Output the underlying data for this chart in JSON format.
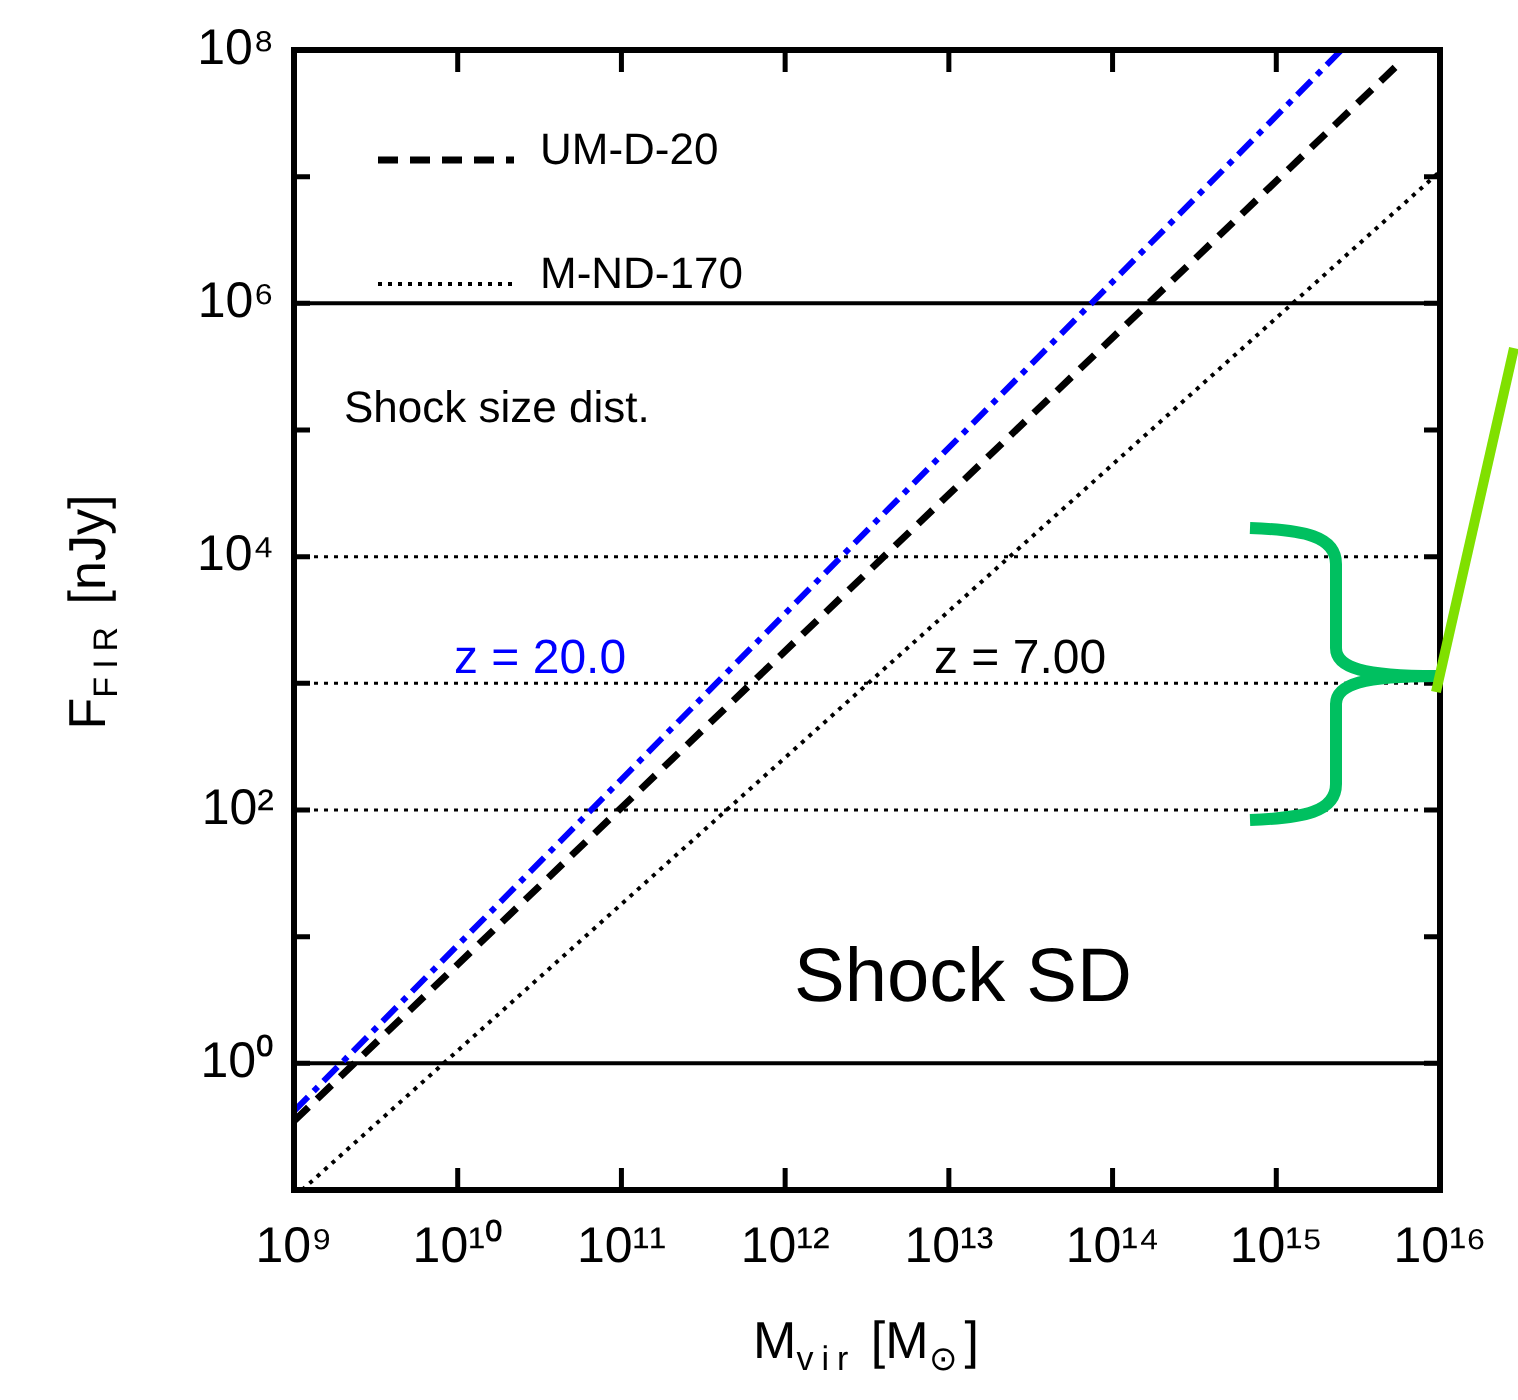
{
  "chart_data": {
    "type": "line",
    "xlabel": "M$_{vir}$ [M$_{⊙}$]",
    "ylabel": "F$_{FIR}$ [nJy]",
    "log": "xy",
    "xlim": [
      1000000000,
      10000000000000000
    ],
    "ylim": [
      0.1,
      100000000
    ],
    "xticks": [
      {
        "value": 1000000000,
        "label": "10⁹"
      },
      {
        "value": 10000000000,
        "label": "10¹⁰"
      },
      {
        "value": 100000000000,
        "label": "10¹¹"
      },
      {
        "value": 1000000000000,
        "label": "10¹²"
      },
      {
        "value": 10000000000000,
        "label": "10¹³"
      },
      {
        "value": 100000000000000,
        "label": "10¹⁴"
      },
      {
        "value": 1000000000000000,
        "label": "10¹⁵"
      },
      {
        "value": 10000000000000000,
        "label": "10¹⁶"
      }
    ],
    "yticks": [
      {
        "value": 0.1,
        "label": null
      },
      {
        "value": 1,
        "label": "10⁰"
      },
      {
        "value": 10,
        "label": null
      },
      {
        "value": 100,
        "label": "10²"
      },
      {
        "value": 1000,
        "label": null
      },
      {
        "value": 10000,
        "label": "10⁴"
      },
      {
        "value": 100000,
        "label": null
      },
      {
        "value": 1000000,
        "label": "10⁶"
      },
      {
        "value": 10000000,
        "label": null
      },
      {
        "value": 100000000,
        "label": "10⁸"
      }
    ],
    "legend": "top left",
    "marker": "none",
    "series": [
      {
        "color": "#0000ff",
        "line_style": "dashdot",
        "x": [
          1000000000,
          2500000000000000
        ],
        "values": [
          0.42,
          100000000
        ]
      },
      {
        "name": "UM-D-20",
        "color": "#000000",
        "line_style": "dashed",
        "x": [
          1000000000,
          5900000000000000
        ],
        "values": [
          0.35,
          83000000
        ]
      },
      {
        "name": "M-ND-170",
        "color": "#000000",
        "line_style": "dotted",
        "x": [
          1120000000,
          10000000000000000
        ],
        "values": [
          0.1,
          11000000
        ]
      }
    ],
    "ref_lines": [
      {
        "axis": "y",
        "value": 1000000,
        "color": "#000000",
        "line_style": "solid"
      },
      {
        "axis": "y",
        "value": 10000,
        "color": "#000000",
        "line_style": "dotted"
      },
      {
        "axis": "y",
        "value": 1000,
        "color": "#000000",
        "line_style": "dotted"
      },
      {
        "axis": "y",
        "value": 100,
        "color": "#000000",
        "line_style": "dotted"
      },
      {
        "axis": "y",
        "value": 1,
        "color": "#000000",
        "line_style": "solid"
      }
    ],
    "annotations": [
      "Shock size dist.",
      "z = 20.0",
      "z = 7.00",
      "Shock SD"
    ]
  }
}
